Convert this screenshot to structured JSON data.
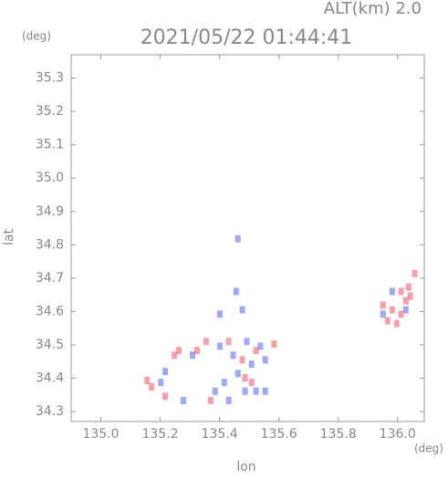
{
  "chart_data": {
    "type": "scatter",
    "annotation": "ALT(km) 2.0",
    "title": "2021/05/22 01:44:41",
    "y_unit": "(deg)",
    "x_unit": "(deg)",
    "y_label": "lat",
    "x_label": "lon",
    "xlim": [
      134.9,
      136.09
    ],
    "ylim": [
      34.27,
      35.37
    ],
    "xticks": [
      {
        "value": 135,
        "label": "135.0"
      },
      135.2,
      135.4,
      135.6,
      135.8,
      {
        "value": 136,
        "label": "136.0"
      }
    ],
    "yticks": [
      34.3,
      34.4,
      34.5,
      34.6,
      34.7,
      34.8,
      34.9,
      {
        "value": 35,
        "label": "35.0"
      },
      35.1,
      35.2,
      35.3
    ],
    "series": [
      {
        "color": "#f06070",
        "x": [
          136.028,
          136.043,
          136.012,
          135.997,
          136.037,
          135.966,
          135.982,
          136.058,
          135.263,
          135.248,
          135.156,
          135.171,
          135.523,
          135.431,
          135.355,
          135.324,
          135.486,
          135.508,
          135.37,
          135.217,
          135.584,
          135.477,
          135.951,
          136.012
        ],
        "values": [
          34.632,
          34.646,
          34.592,
          34.564,
          34.673,
          34.572,
          34.605,
          34.714,
          34.483,
          34.469,
          34.393,
          34.374,
          34.483,
          34.51,
          34.51,
          34.483,
          34.401,
          34.387,
          34.333,
          34.346,
          34.502,
          34.455,
          34.619,
          34.66
        ]
      },
      {
        "color": "#6070f0",
        "x": [
          135.462,
          135.456,
          135.477,
          135.401,
          135.508,
          135.486,
          135.523,
          135.416,
          135.554,
          135.385,
          135.278,
          135.309,
          135.446,
          135.492,
          135.554,
          135.982,
          136.028,
          135.951,
          135.462,
          135.431,
          135.202,
          135.217,
          135.401,
          135.538
        ],
        "values": [
          34.818,
          34.66,
          34.605,
          34.592,
          34.442,
          34.361,
          34.361,
          34.387,
          34.361,
          34.361,
          34.333,
          34.469,
          34.469,
          34.51,
          34.455,
          34.66,
          34.605,
          34.592,
          34.414,
          34.333,
          34.387,
          34.42,
          34.496,
          34.496
        ]
      }
    ]
  }
}
